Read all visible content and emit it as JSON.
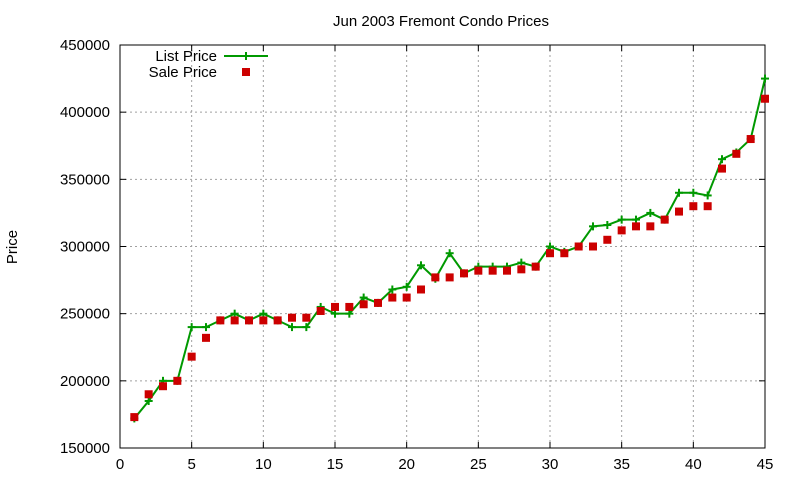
{
  "chart_data": {
    "type": "line",
    "title": "Jun 2003 Fremont Condo Prices",
    "xlabel": "",
    "ylabel": "Price",
    "xlim": [
      0,
      45
    ],
    "ylim": [
      150000,
      450000
    ],
    "xticks": [
      0,
      5,
      10,
      15,
      20,
      25,
      30,
      35,
      40,
      45
    ],
    "yticks": [
      150000,
      200000,
      250000,
      300000,
      350000,
      400000,
      450000
    ],
    "grid": true,
    "legend": "top-left",
    "series": [
      {
        "name": "List Price",
        "style": "line-plus",
        "color": "#009900",
        "x": [
          1,
          2,
          3,
          4,
          5,
          6,
          7,
          8,
          9,
          10,
          11,
          12,
          13,
          14,
          15,
          16,
          17,
          18,
          19,
          20,
          21,
          22,
          23,
          24,
          25,
          26,
          27,
          28,
          29,
          30,
          31,
          32,
          33,
          34,
          35,
          36,
          37,
          38,
          39,
          40,
          41,
          42,
          43,
          44,
          45
        ],
        "y": [
          172000,
          185000,
          200000,
          200000,
          240000,
          240000,
          245000,
          250000,
          245000,
          250000,
          245000,
          240000,
          240000,
          255000,
          250000,
          250000,
          262000,
          258000,
          268000,
          270000,
          286000,
          276000,
          295000,
          280000,
          285000,
          285000,
          285000,
          288000,
          285000,
          300000,
          296000,
          300000,
          315000,
          316000,
          320000,
          320000,
          325000,
          320000,
          340000,
          340000,
          338000,
          365000,
          370000,
          380000,
          425000
        ]
      },
      {
        "name": "Sale Price",
        "style": "square",
        "color": "#cc0000",
        "x": [
          1,
          2,
          3,
          4,
          5,
          6,
          7,
          8,
          9,
          10,
          11,
          12,
          13,
          14,
          15,
          16,
          17,
          18,
          19,
          20,
          21,
          22,
          23,
          24,
          25,
          26,
          27,
          28,
          29,
          30,
          31,
          32,
          33,
          34,
          35,
          36,
          37,
          38,
          39,
          40,
          41,
          42,
          43,
          44,
          45
        ],
        "y": [
          173000,
          190000,
          196000,
          200000,
          218000,
          232000,
          245000,
          245000,
          245000,
          245000,
          245000,
          247000,
          247000,
          252000,
          255000,
          255000,
          257000,
          258000,
          262000,
          262000,
          268000,
          277000,
          277000,
          280000,
          282000,
          282000,
          282000,
          283000,
          285000,
          295000,
          295000,
          300000,
          300000,
          305000,
          312000,
          315000,
          315000,
          320000,
          326000,
          330000,
          330000,
          358000,
          369000,
          380000,
          410000
        ]
      }
    ]
  }
}
